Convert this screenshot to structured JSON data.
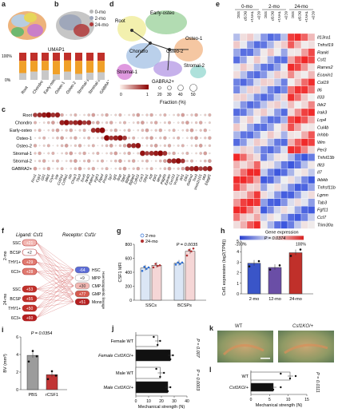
{
  "panel_letters": {
    "a": "a",
    "b": "b",
    "c": "c",
    "d": "d",
    "e": "e",
    "f": "f",
    "g": "g",
    "h": "h",
    "i": "i",
    "j": "j",
    "k": "k",
    "l": "l"
  },
  "panel_b": {
    "legend": [
      "0-mo",
      "2-mo",
      "24-mo"
    ],
    "colors": [
      "#b8b8b8",
      "#9fa7ba",
      "#b03a3a"
    ]
  },
  "panel_a": {
    "umap_label": "UMAP1"
  },
  "panel_a_bar": {
    "y_ticks": [
      "0%",
      "100%"
    ],
    "categories": [
      "Root",
      "Chondro",
      "Early-osteo",
      "Osteo-1",
      "Osteo-2",
      "Stromal-1",
      "Stromal-2",
      "GABRA2+"
    ],
    "colors": {
      "0-mo": "#c8c8c8",
      "2-mo": "#f0a028",
      "24-mo": "#c0302a"
    }
  },
  "panel_d": {
    "clusters": [
      "Root",
      "Early-osteo",
      "Chondro",
      "Osteo-1",
      "Osteo-2",
      "Stromal-1",
      "Stromal-2",
      "GABRA2+"
    ],
    "colorbar_ticks": [
      "0",
      "1"
    ],
    "fraction_label": "Fraction (%)",
    "fraction_ticks": [
      "20",
      "30",
      "40",
      "50"
    ]
  },
  "panel_c": {
    "rows": [
      "Root",
      "Chondro",
      "Early-osteo",
      "Osteo-1",
      "Osteo-2",
      "Stromal-1",
      "Stromal-2",
      "GABRA2+"
    ],
    "genes": [
      "Prrx1",
      "Cyp1",
      "Gli1",
      "Mkl1",
      "Crym",
      "Vdr",
      "Col2a1",
      "Col9a1",
      "Ihh",
      "Chsy3",
      "Tbx3",
      "Sox5",
      "Nr4l3",
      "Pdlim1",
      "Fgfr3",
      "Ptprd",
      "Postn",
      "Sp7",
      "Igf1",
      "Ibsp",
      "Spp1",
      "Bglap",
      "Bglap2",
      "Cdh11",
      "Car3",
      "Sfrp1",
      "Kitl",
      "Ebf1",
      "Mme",
      "Pdgfrb",
      "Epcam",
      "Cxcl12",
      "Vcam1",
      "Wt1",
      "Dlk1",
      "Gabra2",
      "Tox3",
      "Vmn2r101",
      "Mt3",
      "Ebpgf1"
    ]
  },
  "panel_e": {
    "title": "Gene expression",
    "colorbar_ticks": [
      "-100%",
      "100%"
    ],
    "group_labels": [
      "0-mo",
      "2-mo",
      "24-mo"
    ],
    "columns": [
      "SSC",
      "BCSP",
      "THY1+",
      "6C3+",
      "SSC",
      "BCSP",
      "THY1+",
      "6C3+",
      "SSC",
      "BCSP",
      "THY1+",
      "6C3+"
    ],
    "genes": [
      "Il13ra1",
      "Tnfrsf19",
      "Rankl",
      "Csf1",
      "Rarres2",
      "Ecaxin1",
      "Col19",
      "Il6",
      "Il33",
      "Ildr2",
      "Irak3",
      "Lrp4",
      "Cul4b",
      "Inhbb",
      "Wm",
      "Per3",
      "Tnfsf13b",
      "Ifit3",
      "Il7",
      "Ikbkb",
      "Tnfrsf11b",
      "Lgmn",
      "Tab3",
      "Fgf11",
      "Ccl7",
      "Trim30a"
    ]
  },
  "panel_f": {
    "ligand_title": "Ligand: Csf1",
    "receptor_title": "Receptor: Csf1r",
    "lineage_label": "Haematopoietic lineage",
    "groups": [
      "2-mo",
      "24-mo"
    ],
    "senders_2mo": [
      {
        "name": "SSC",
        "value": "+21"
      },
      {
        "name": "BCSP",
        "value": "+2"
      },
      {
        "name": "THY1+",
        "value": "+29"
      },
      {
        "name": "6C3+",
        "value": "+28"
      }
    ],
    "senders_24mo": [
      {
        "name": "SSC",
        "value": "+53"
      },
      {
        "name": "BCSP",
        "value": "+55"
      },
      {
        "name": "THY1+",
        "value": "+50"
      },
      {
        "name": "6C3+",
        "value": "+60"
      }
    ],
    "receivers": [
      {
        "name": "HSC",
        "value": "-64"
      },
      {
        "name": "MPP",
        "value": "+9"
      },
      {
        "name": "CMP",
        "value": "+30"
      },
      {
        "name": "GMP",
        "value": "+77"
      },
      {
        "name": "Mono",
        "value": "+51"
      }
    ]
  },
  "panel_g": {
    "ylabel": "CSF1 MFI",
    "legend": [
      "2-mo",
      "24-mo"
    ],
    "y_ticks": [
      "0",
      "200",
      "400",
      "600",
      "800"
    ],
    "categories": [
      "SSCs",
      "BCSPs"
    ],
    "pvalue": "P = 0.0035",
    "chart_data": {
      "type": "bar",
      "categories": [
        "SSCs",
        "BCSPs"
      ],
      "series": [
        {
          "name": "2-mo",
          "values": [
            460,
            530
          ]
        },
        {
          "name": "24-mo",
          "values": [
            500,
            700
          ]
        }
      ],
      "ylim": [
        0,
        800
      ]
    }
  },
  "panel_h": {
    "ylabel": "Csf1 expression (log2(TPM))",
    "y_ticks": [
      "0",
      "1",
      "2",
      "3",
      "4",
      "5"
    ],
    "categories": [
      "2-mo",
      "12-mo",
      "24-mo"
    ],
    "pvalue": "P = 0.0374",
    "chart_data": {
      "type": "bar",
      "categories": [
        "2-mo",
        "12-mo",
        "24-mo"
      ],
      "values": [
        2.9,
        2.5,
        3.9
      ],
      "ylim": [
        0,
        5
      ]
    }
  },
  "panel_i": {
    "ylabel": "BV (mm³)",
    "y_ticks": [
      "0",
      "2",
      "4",
      "6"
    ],
    "categories": [
      "PBS",
      "rCSF1"
    ],
    "pvalue": "P = 0.0354",
    "chart_data": {
      "type": "bar",
      "categories": [
        "PBS",
        "rCSF1"
      ],
      "values": [
        3.9,
        1.7
      ],
      "ylim": [
        0,
        6
      ]
    }
  },
  "panel_j": {
    "xlabel": "Mechanical strength (N)",
    "x_ticks": [
      "0",
      "10",
      "20",
      "30",
      "40"
    ],
    "categories": [
      "Female WT",
      "Female Csf1KO/+",
      "Male WT",
      "Male Csf1KO/+"
    ],
    "pvalues": [
      "P = 0.007",
      "P = 0.0003"
    ],
    "chart_data": {
      "type": "bar",
      "categories": [
        "Female WT",
        "Female Csf1KO/+",
        "Male WT",
        "Male Csf1KO/+"
      ],
      "values": [
        17,
        27,
        19,
        25
      ],
      "xlim": [
        0,
        40
      ]
    }
  },
  "panel_k": {
    "labels": [
      "WT",
      "Csf1KO/+"
    ]
  },
  "panel_l": {
    "xlabel": "Mechanical strength (N)",
    "x_ticks": [
      "0",
      "5",
      "10",
      "15"
    ],
    "categories": [
      "WT",
      "Csf1KO/+"
    ],
    "pvalue": "P = 0.0111",
    "chart_data": {
      "type": "bar",
      "categories": [
        "WT",
        "Csf1KO/+"
      ],
      "values": [
        10.5,
        6
      ],
      "xlim": [
        0,
        15
      ]
    }
  }
}
